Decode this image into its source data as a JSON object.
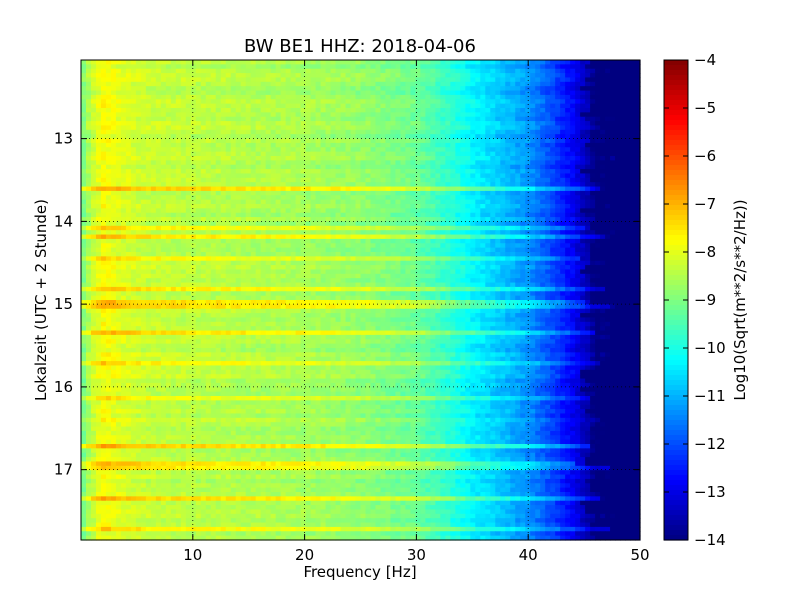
{
  "chart_data": {
    "type": "heatmap",
    "title": "BW BE1 HHZ: 2018-04-06",
    "xlabel": "Frequency [Hz]",
    "ylabel": "Lokalzeit (UTC + 2 Stunde)",
    "colorbar_label": "Log10(Sqrt(m**2/s**2/Hz))",
    "colormap": "jet",
    "xlim": [
      0,
      50
    ],
    "ylim": [
      12.05,
      17.85
    ],
    "y_inverted": true,
    "x_ticks": [
      10,
      20,
      30,
      40,
      50
    ],
    "x_tick_labels": [
      "10",
      "20",
      "30",
      "40",
      "50"
    ],
    "y_ticks": [
      13,
      14,
      15,
      16,
      17
    ],
    "y_tick_labels": [
      "13",
      "14",
      "15",
      "16",
      "17"
    ],
    "color_range": [
      -14,
      -4
    ],
    "colorbar_ticks": [
      -4,
      -5,
      -6,
      -7,
      -8,
      -9,
      -10,
      -11,
      -12,
      -13,
      -14
    ],
    "colorbar_tick_labels": [
      "−4",
      "−5",
      "−6",
      "−7",
      "−8",
      "−9",
      "−10",
      "−11",
      "−12",
      "−13",
      "−14"
    ],
    "grid": "dotted",
    "spectral_profile": {
      "frequency_hz": [
        0.2,
        1,
        2,
        4,
        6,
        10,
        15,
        20,
        25,
        30,
        33,
        35,
        38,
        40,
        42,
        44,
        45.5,
        46,
        50
      ],
      "log10_amplitude": [
        -9.0,
        -8.3,
        -7.8,
        -8.1,
        -8.3,
        -8.4,
        -8.5,
        -8.6,
        -8.8,
        -9.2,
        -9.8,
        -10.3,
        -10.9,
        -11.3,
        -12.0,
        -12.8,
        -13.6,
        -14.0,
        -14.0
      ]
    },
    "bright_bands": {
      "local_time_hours": [
        13.6,
        14.1,
        14.2,
        14.45,
        14.8,
        15.0,
        15.35,
        15.7,
        16.15,
        16.7,
        16.95,
        17.35,
        17.7
      ],
      "delta_log10": [
        1.0,
        0.6,
        0.8,
        0.7,
        0.9,
        0.8,
        0.9,
        0.8,
        0.6,
        1.0,
        0.9,
        1.0,
        0.8
      ]
    }
  }
}
